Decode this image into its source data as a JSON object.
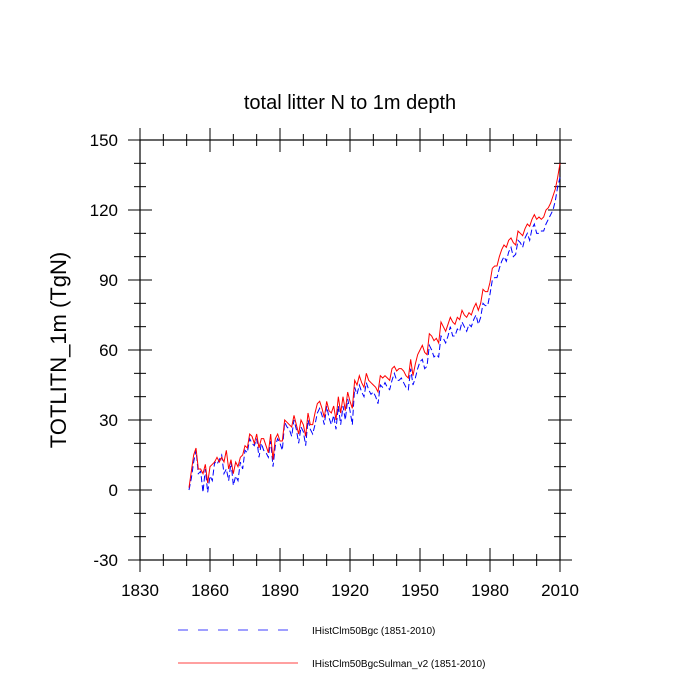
{
  "chart_data": {
    "type": "line",
    "title": "total litter N to 1m depth",
    "xlabel": "",
    "ylabel": "TOTLITN_1m  (TgN)",
    "xlim": [
      1830,
      2010
    ],
    "ylim": [
      -30,
      150
    ],
    "xticks": [
      "1830",
      "1860",
      "1890",
      "1920",
      "1950",
      "1980",
      "2010"
    ],
    "yticks": [
      "-30",
      "0",
      "30",
      "60",
      "90",
      "120",
      "150"
    ],
    "grid": false,
    "legend_position": "bottom",
    "series": [
      {
        "name": "IHistClm50Bgc (1851-2010)",
        "color": "#0000ff",
        "dash": "dashed",
        "x_start": 1851,
        "values": [
          0,
          5,
          12,
          17,
          7,
          8,
          -1,
          9,
          -1,
          6,
          4,
          12,
          11,
          13,
          15,
          7,
          9,
          4,
          12,
          2,
          6,
          4,
          12,
          9,
          17,
          16,
          22,
          20,
          19,
          22,
          14,
          20,
          17,
          16,
          14,
          21,
          10,
          19,
          22,
          20,
          17,
          29,
          27,
          26,
          23,
          30,
          26,
          20,
          27,
          25,
          19,
          30,
          26,
          24,
          28,
          33,
          35,
          32,
          28,
          36,
          31,
          28,
          32,
          26,
          36,
          28,
          36,
          30,
          39,
          34,
          28,
          44,
          41,
          45,
          42,
          40,
          46,
          43,
          41,
          42,
          40,
          37,
          45,
          44,
          46,
          44,
          43,
          47,
          50,
          47,
          47,
          48,
          46,
          44,
          43,
          52,
          45,
          48,
          52,
          55,
          56,
          52,
          53,
          62,
          60,
          57,
          58,
          57,
          66,
          65,
          63,
          66,
          70,
          66,
          66,
          69,
          68,
          72,
          70,
          68,
          71,
          70,
          73,
          75,
          71,
          74,
          80,
          79,
          79,
          84,
          90,
          91,
          91,
          95,
          98,
          100,
          98,
          102,
          104,
          100,
          101,
          107,
          106,
          104,
          108,
          110,
          107,
          112,
          114,
          110,
          110,
          111,
          111,
          114,
          116,
          118,
          120,
          124,
          130,
          134
        ]
      },
      {
        "name": "IHistClm50BgcSulman_v2 (1851-2010)",
        "color": "#ff0000",
        "dash": "solid",
        "x_start": 1851,
        "values": [
          1,
          8,
          15,
          18,
          9,
          9,
          7,
          11,
          3,
          10,
          11,
          12,
          14,
          12,
          14,
          12,
          17,
          9,
          13,
          7,
          12,
          10,
          14,
          15,
          19,
          18,
          24,
          23,
          20,
          24,
          18,
          22,
          22,
          19,
          16,
          24,
          13,
          22,
          24,
          21,
          21,
          30,
          29,
          28,
          27,
          32,
          28,
          24,
          30,
          28,
          23,
          33,
          28,
          28,
          33,
          37,
          38,
          35,
          31,
          38,
          34,
          33,
          36,
          30,
          40,
          33,
          40,
          34,
          42,
          38,
          35,
          47,
          45,
          49,
          46,
          44,
          50,
          47,
          46,
          45,
          44,
          42,
          49,
          48,
          49,
          48,
          47,
          52,
          53,
          51,
          52,
          52,
          51,
          49,
          48,
          56,
          49,
          54,
          58,
          60,
          62,
          59,
          58,
          67,
          66,
          64,
          65,
          63,
          72,
          70,
          68,
          71,
          74,
          72,
          71,
          74,
          73,
          77,
          75,
          74,
          76,
          75,
          78,
          80,
          77,
          80,
          86,
          85,
          85,
          89,
          95,
          96,
          96,
          100,
          103,
          105,
          104,
          107,
          108,
          106,
          105,
          111,
          110,
          109,
          112,
          114,
          113,
          116,
          118,
          116,
          117,
          116,
          117,
          120,
          121,
          123,
          126,
          129,
          134,
          140
        ]
      }
    ]
  }
}
